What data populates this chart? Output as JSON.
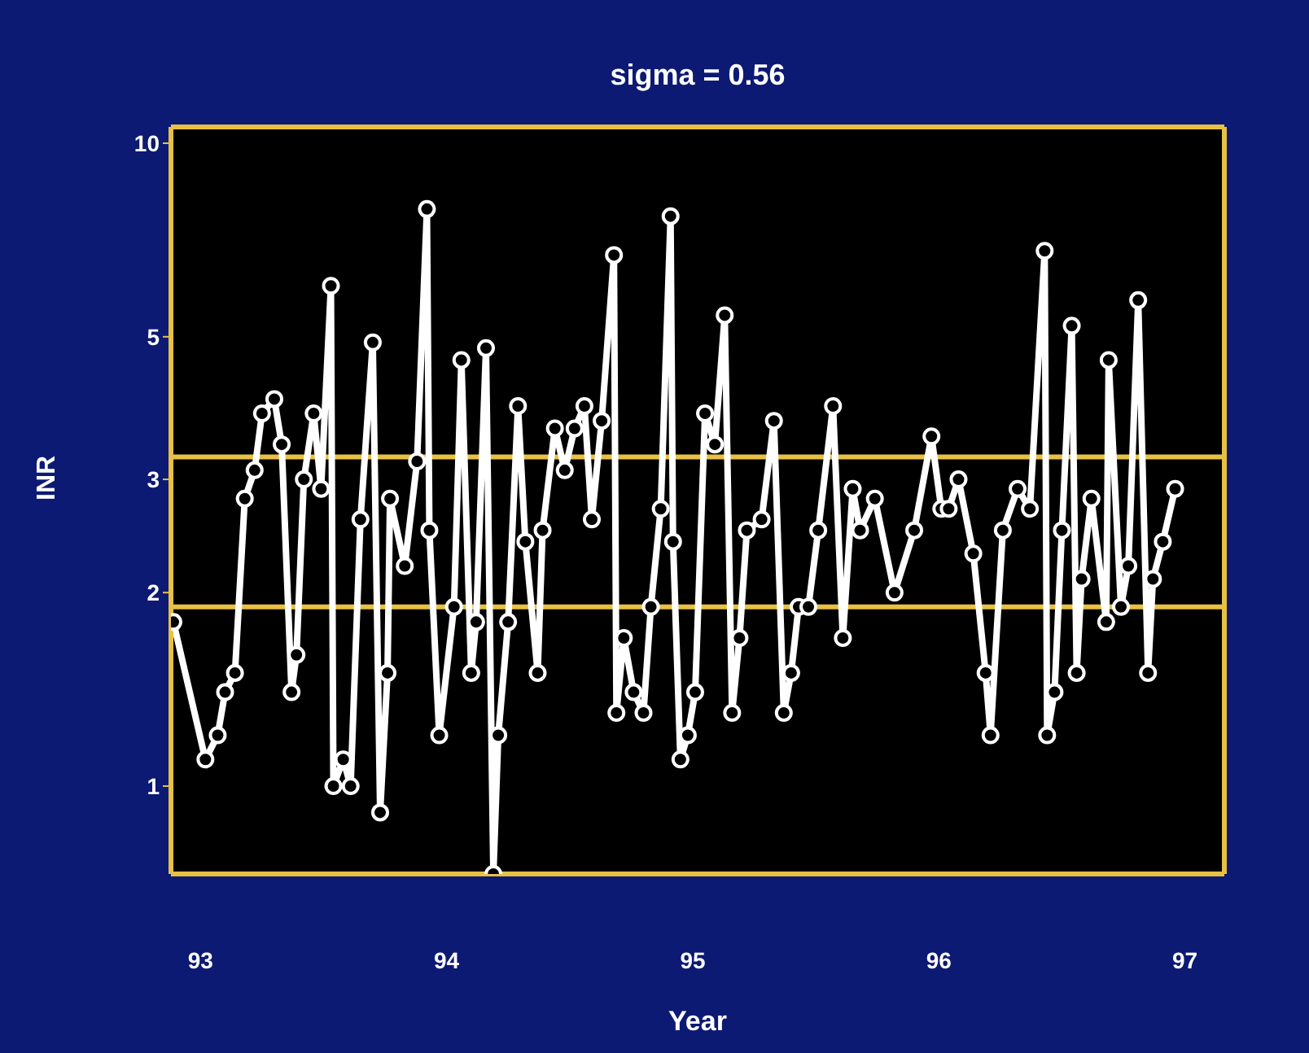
{
  "chart_data": {
    "type": "line",
    "title": "sigma = 0.56",
    "xlabel": "Year",
    "ylabel": "INR",
    "x": [
      92.89,
      93.02,
      93.07,
      93.1,
      93.14,
      93.18,
      93.22,
      93.25,
      93.3,
      93.33,
      93.37,
      93.39,
      93.42,
      93.46,
      93.49,
      93.53,
      93.54,
      93.58,
      93.61,
      93.65,
      93.7,
      93.73,
      93.76,
      93.77,
      93.83,
      93.88,
      93.92,
      93.93,
      93.97,
      94.03,
      94.06,
      94.1,
      94.12,
      94.16,
      94.19,
      94.21,
      94.25,
      94.29,
      94.32,
      94.37,
      94.39,
      94.44,
      94.48,
      94.52,
      94.56,
      94.59,
      94.63,
      94.68,
      94.69,
      94.72,
      94.76,
      94.8,
      94.83,
      94.87,
      94.91,
      94.92,
      94.95,
      94.98,
      95.01,
      95.05,
      95.09,
      95.13,
      95.16,
      95.19,
      95.22,
      95.28,
      95.33,
      95.37,
      95.4,
      95.43,
      95.47,
      95.51,
      95.57,
      95.61,
      95.65,
      95.68,
      95.74,
      95.82,
      95.9,
      95.97,
      96.01,
      96.04,
      96.08,
      96.14,
      96.19,
      96.21,
      96.26,
      96.32,
      96.37,
      96.43,
      96.44,
      96.47,
      96.5,
      96.54,
      96.56,
      96.58,
      96.62,
      96.68,
      96.69,
      96.74,
      96.77,
      96.81,
      96.85,
      96.87,
      96.91,
      96.96
    ],
    "series": [
      {
        "color": "#ffffff",
        "values": [
          1.8,
          1.1,
          1.2,
          1.4,
          1.5,
          2.8,
          3.1,
          3.8,
          4.0,
          3.4,
          1.4,
          1.6,
          3.0,
          3.8,
          2.9,
          6.0,
          1.0,
          1.1,
          1.0,
          2.6,
          4.9,
          0.91,
          1.5,
          2.8,
          2.2,
          3.2,
          7.9,
          2.5,
          1.2,
          1.9,
          4.6,
          1.5,
          1.8,
          4.8,
          0.73,
          1.2,
          1.8,
          3.9,
          2.4,
          1.5,
          2.5,
          3.6,
          3.1,
          3.6,
          3.9,
          2.6,
          3.7,
          6.7,
          1.3,
          1.7,
          1.4,
          1.3,
          1.9,
          2.7,
          7.7,
          2.4,
          1.1,
          1.2,
          1.4,
          3.8,
          3.4,
          5.4,
          1.3,
          1.7,
          2.5,
          2.6,
          3.7,
          1.3,
          1.5,
          1.9,
          1.9,
          2.5,
          3.9,
          1.7,
          2.9,
          2.5,
          2.8,
          2.0,
          2.5,
          3.5,
          2.7,
          2.7,
          3.0,
          2.3,
          1.5,
          1.2,
          2.5,
          2.9,
          2.7,
          6.8,
          1.2,
          1.4,
          2.5,
          5.2,
          1.5,
          2.1,
          2.8,
          1.8,
          4.6,
          1.9,
          2.2,
          5.7,
          1.5,
          2.1,
          2.4,
          2.9
        ]
      }
    ],
    "xlim": [
      92.88,
      97.16
    ],
    "xticks": [
      93,
      94,
      95,
      96,
      97
    ],
    "ylim": [
      0.73,
      10.6
    ],
    "yticks": [
      1,
      2,
      3,
      5,
      10
    ],
    "log": true,
    "ref_lines": [
      {
        "axis": "y",
        "value": 3.25,
        "color": "#e8c044"
      },
      {
        "axis": "y",
        "value": 1.9,
        "color": "#e8c044"
      }
    ],
    "grid": false,
    "marker": "circle",
    "line_style": "solid"
  }
}
